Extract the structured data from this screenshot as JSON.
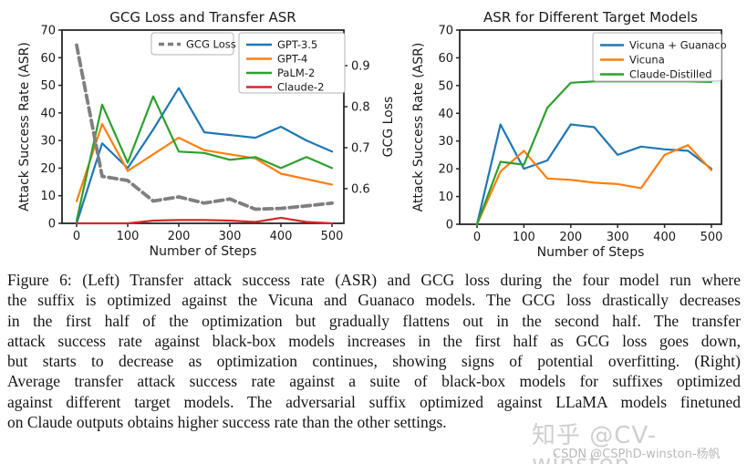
{
  "chart_data": [
    {
      "type": "line",
      "title": "GCG Loss and Transfer ASR",
      "xlabel": "Number of Steps",
      "ylabel": "Attack Success Rate (ASR)",
      "y2label": "GCG Loss",
      "x": [
        0,
        50,
        100,
        150,
        200,
        250,
        300,
        350,
        400,
        450,
        500
      ],
      "xticks": [
        0,
        100,
        200,
        300,
        400,
        500
      ],
      "yticks": [
        0,
        10,
        20,
        30,
        40,
        50,
        60,
        70
      ],
      "y2ticks": [
        0.6,
        0.7,
        0.8,
        0.9
      ],
      "ylim": [
        0,
        70
      ],
      "y2lim": [
        0.515,
        0.985
      ],
      "grid": false,
      "legend_position": "upper center / upper right",
      "series": [
        {
          "name": "GPT-3.5",
          "color": "#1f77b4",
          "axis": "y1",
          "style": "solid",
          "values": [
            0,
            29,
            20,
            34,
            49,
            33,
            32,
            31,
            35,
            30,
            26
          ]
        },
        {
          "name": "GPT-4",
          "color": "#ff7f0e",
          "axis": "y1",
          "style": "solid",
          "values": [
            8,
            36,
            19,
            25,
            31,
            26.5,
            25,
            23.5,
            18,
            16,
            14
          ]
        },
        {
          "name": "PaLM-2",
          "color": "#2ca02c",
          "axis": "y1",
          "style": "solid",
          "values": [
            1,
            43,
            22,
            46,
            26,
            25.5,
            23,
            24,
            20,
            24,
            20
          ]
        },
        {
          "name": "Claude-2",
          "color": "#d62728",
          "axis": "y1",
          "style": "solid",
          "values": [
            0,
            0,
            0,
            1,
            1.2,
            1.2,
            1,
            0.5,
            2,
            0.5,
            0
          ]
        },
        {
          "name": "GCG Loss",
          "color": "#7f7f7f",
          "axis": "y2",
          "style": "dashed",
          "values": [
            0.95,
            0.63,
            0.62,
            0.57,
            0.58,
            0.565,
            0.575,
            0.55,
            0.552,
            0.558,
            0.565
          ]
        }
      ]
    },
    {
      "type": "line",
      "title": "ASR for Different Target Models",
      "xlabel": "Number of Steps",
      "ylabel": "Attack Success Rate (ASR)",
      "x": [
        0,
        50,
        100,
        150,
        200,
        250,
        300,
        350,
        400,
        450,
        500
      ],
      "xticks": [
        0,
        100,
        200,
        300,
        400,
        500
      ],
      "yticks": [
        0,
        10,
        20,
        30,
        40,
        50,
        60,
        70
      ],
      "ylim": [
        0,
        70
      ],
      "grid": false,
      "legend_position": "upper right",
      "series": [
        {
          "name": "Vicuna + Guanaco",
          "color": "#1f77b4",
          "axis": "y1",
          "style": "solid",
          "values": [
            0,
            36,
            20,
            23,
            36,
            35,
            25,
            28,
            27,
            26.5,
            20
          ]
        },
        {
          "name": "Vicuna",
          "color": "#ff7f0e",
          "axis": "y1",
          "style": "solid",
          "values": [
            0,
            19,
            26.5,
            16.5,
            16,
            15,
            14.5,
            13,
            25,
            28.5,
            19.5
          ]
        },
        {
          "name": "Claude-Distilled",
          "color": "#2ca02c",
          "axis": "y1",
          "style": "solid",
          "values": [
            0,
            22.5,
            21.5,
            42,
            51,
            51.5,
            51.5,
            51.5,
            51.5,
            51.5,
            51.3
          ]
        }
      ]
    }
  ],
  "caption": {
    "lines": [
      "Figure 6: (Left) Transfer attack success rate (ASR) and GCG loss during the four model run where",
      "the suffix is optimized against the Vicuna and Guanaco models. The GCG loss drastically decreases",
      "in the first half of the optimization but gradually flattens out in the second half. The transfer",
      "attack success rate against black-box models increases in the first half as GCG loss goes down,",
      "but starts to decrease as optimization continues, showing signs of potential overfitting. (Right)",
      "Average transfer attack success rate against a suite of black-box models for suffixes optimized",
      "against different target models. The adversarial suffix optimized against LLaMA models finetuned",
      "on Claude outputs obtains higher success rate than the other settings."
    ]
  },
  "watermark": {
    "zhihu": "知乎 @CV-winston",
    "csdn": "CSDN @CSPhD-winston-杨帆"
  },
  "colors": {
    "axis_line": "#262626",
    "text": "#1a1a1a",
    "legend_border": "#b3b3b3"
  }
}
